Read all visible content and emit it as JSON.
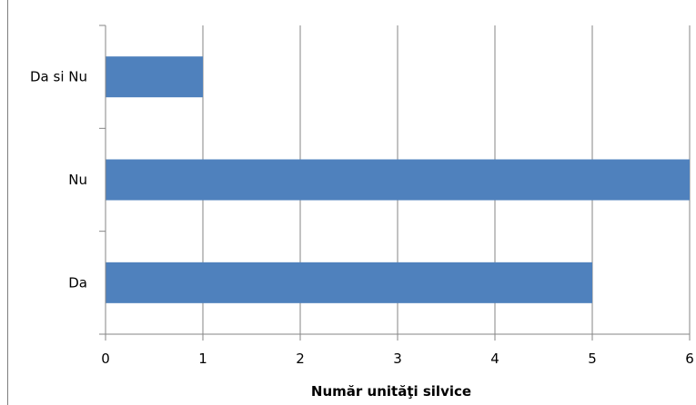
{
  "chart_data": {
    "type": "bar",
    "orientation": "horizontal",
    "categories": [
      "Da si Nu",
      "Nu",
      "Da"
    ],
    "values": [
      1,
      6,
      5
    ],
    "title": "",
    "xlabel": "Număr unităţi silvice",
    "ylabel": "",
    "xlim": [
      0,
      6
    ],
    "x_ticks": [
      "0",
      "1",
      "2",
      "3",
      "4",
      "5",
      "6"
    ],
    "grid": "vertical",
    "legend": "none"
  },
  "colors": {
    "bar": "#4f81bd",
    "grid": "#868686",
    "axis": "#868686",
    "text": "#000000"
  }
}
